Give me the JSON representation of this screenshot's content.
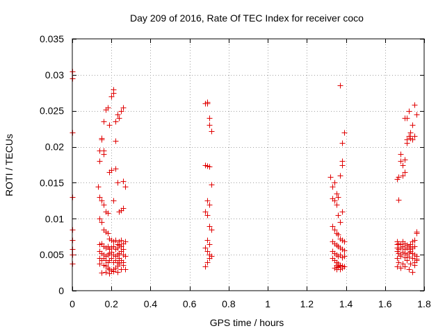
{
  "chart_data": {
    "type": "scatter",
    "title": "Day 209 of 2016, Rate Of TEC Index for receiver coco",
    "xlabel": "GPS time / hours",
    "ylabel": "ROTI / TECUs",
    "xlim": [
      0,
      1.8
    ],
    "ylim": [
      0,
      0.035
    ],
    "grid": true,
    "marker": "+",
    "point_color": "#e00000",
    "xticks": [
      "0",
      "0.2",
      "0.4",
      "0.6",
      "0.8",
      "1",
      "1.2",
      "1.4",
      "1.6",
      "1.8"
    ],
    "yticks": [
      "0",
      "0.005",
      "0.01",
      "0.015",
      "0.02",
      "0.025",
      "0.03",
      "0.035"
    ],
    "series": [
      {
        "name": "ROTI",
        "x": [
          0.0,
          0.0,
          0.0,
          0.0,
          0.0,
          0.0,
          0.0,
          0.0,
          0.0,
          0.13,
          0.14,
          0.14,
          0.15,
          0.15,
          0.16,
          0.16,
          0.16,
          0.17,
          0.18,
          0.19,
          0.19,
          0.2,
          0.21,
          0.21,
          0.22,
          0.22,
          0.23,
          0.23,
          0.24,
          0.25,
          0.26,
          0.26,
          0.27,
          0.14,
          0.15,
          0.16,
          0.17,
          0.18,
          0.2,
          0.21,
          0.22,
          0.24,
          0.25,
          0.26,
          0.14,
          0.15,
          0.16,
          0.17,
          0.18,
          0.19,
          0.2,
          0.21,
          0.22,
          0.23,
          0.24,
          0.25,
          0.26,
          0.27,
          0.14,
          0.15,
          0.16,
          0.17,
          0.18,
          0.19,
          0.2,
          0.21,
          0.22,
          0.23,
          0.24,
          0.25,
          0.26,
          0.14,
          0.15,
          0.16,
          0.17,
          0.18,
          0.19,
          0.2,
          0.21,
          0.22,
          0.23,
          0.24,
          0.25,
          0.26,
          0.27,
          0.14,
          0.15,
          0.16,
          0.17,
          0.18,
          0.19,
          0.2,
          0.21,
          0.22,
          0.23,
          0.24,
          0.25,
          0.26,
          0.14,
          0.16,
          0.17,
          0.18,
          0.19,
          0.2,
          0.21,
          0.22,
          0.23,
          0.24,
          0.26,
          0.27,
          0.15,
          0.17,
          0.19,
          0.21,
          0.23,
          0.25,
          0.68,
          0.69,
          0.69,
          0.7,
          0.7,
          0.71,
          0.68,
          0.69,
          0.7,
          0.71,
          0.69,
          0.7,
          0.68,
          0.69,
          0.7,
          0.71,
          0.69,
          0.7,
          0.68,
          0.69,
          0.7,
          0.71,
          0.7,
          0.69,
          0.68,
          1.32,
          1.33,
          1.34,
          1.35,
          1.36,
          1.37,
          1.38,
          1.39,
          1.38,
          1.37,
          1.38,
          1.39,
          1.33,
          1.34,
          1.35,
          1.36,
          1.37,
          1.38,
          1.33,
          1.34,
          1.35,
          1.36,
          1.37,
          1.38,
          1.39,
          1.33,
          1.34,
          1.35,
          1.36,
          1.37,
          1.38,
          1.39,
          1.33,
          1.34,
          1.35,
          1.36,
          1.37,
          1.38,
          1.39,
          1.33,
          1.34,
          1.35,
          1.36,
          1.37,
          1.38,
          1.39,
          1.34,
          1.35,
          1.36,
          1.37,
          1.38,
          1.39,
          1.35,
          1.36,
          1.37,
          1.66,
          1.67,
          1.68,
          1.69,
          1.7,
          1.71,
          1.72,
          1.73,
          1.74,
          1.75,
          1.76,
          1.7,
          1.71,
          1.72,
          1.73,
          1.74,
          1.75,
          1.69,
          1.7,
          1.71,
          1.68,
          1.67,
          1.66,
          1.66,
          1.67,
          1.68,
          1.69,
          1.7,
          1.71,
          1.72,
          1.73,
          1.74,
          1.75,
          1.76,
          1.66,
          1.67,
          1.68,
          1.69,
          1.7,
          1.71,
          1.72,
          1.73,
          1.74,
          1.75,
          1.76,
          1.66,
          1.67,
          1.68,
          1.69,
          1.7,
          1.71,
          1.72,
          1.73,
          1.74,
          1.75,
          1.76,
          1.66,
          1.68,
          1.7,
          1.72,
          1.74,
          1.76,
          1.67,
          1.69,
          1.71,
          1.73,
          1.75,
          1.66,
          1.68,
          1.7,
          1.72,
          1.74,
          1.75,
          1.76
        ],
        "y": [
          0.0305,
          0.0295,
          0.022,
          0.013,
          0.0085,
          0.007,
          0.0058,
          0.005,
          0.0038,
          0.0145,
          0.018,
          0.0195,
          0.0212,
          0.021,
          0.0195,
          0.019,
          0.0235,
          0.0252,
          0.0255,
          0.023,
          0.0165,
          0.027,
          0.0275,
          0.028,
          0.0235,
          0.0208,
          0.015,
          0.0245,
          0.024,
          0.025,
          0.0255,
          0.0115,
          0.0145,
          0.013,
          0.0125,
          0.012,
          0.011,
          0.0108,
          0.0168,
          0.0125,
          0.017,
          0.011,
          0.0112,
          0.0152,
          0.01,
          0.0095,
          0.0085,
          0.0082,
          0.008,
          0.0072,
          0.007,
          0.0068,
          0.007,
          0.0065,
          0.0068,
          0.007,
          0.0066,
          0.0068,
          0.0065,
          0.0066,
          0.0062,
          0.006,
          0.0062,
          0.0058,
          0.006,
          0.0062,
          0.0058,
          0.006,
          0.0064,
          0.0062,
          0.0058,
          0.0055,
          0.0052,
          0.005,
          0.0048,
          0.005,
          0.0052,
          0.0054,
          0.005,
          0.0048,
          0.005,
          0.0052,
          0.0055,
          0.005,
          0.0048,
          0.0045,
          0.0042,
          0.0045,
          0.0042,
          0.004,
          0.0042,
          0.0045,
          0.004,
          0.0042,
          0.004,
          0.0045,
          0.0042,
          0.004,
          0.0038,
          0.0036,
          0.0035,
          0.0032,
          0.003,
          0.0028,
          0.003,
          0.0032,
          0.0035,
          0.0038,
          0.0036,
          0.003,
          0.0025,
          0.0026,
          0.0024,
          0.0027,
          0.0026,
          0.003,
          0.026,
          0.0262,
          0.026,
          0.024,
          0.023,
          0.0222,
          0.0175,
          0.0174,
          0.0173,
          0.0148,
          0.0125,
          0.012,
          0.011,
          0.0105,
          0.009,
          0.0085,
          0.007,
          0.0065,
          0.006,
          0.0055,
          0.005,
          0.0048,
          0.0045,
          0.004,
          0.0034,
          0.0158,
          0.0145,
          0.015,
          0.0135,
          0.013,
          0.016,
          0.0175,
          0.022,
          0.0205,
          0.0285,
          0.018,
          0.022,
          0.0128,
          0.0125,
          0.012,
          0.0105,
          0.0095,
          0.011,
          0.009,
          0.0085,
          0.008,
          0.0078,
          0.0072,
          0.007,
          0.0068,
          0.0068,
          0.0066,
          0.0064,
          0.0062,
          0.006,
          0.0058,
          0.0056,
          0.0055,
          0.0052,
          0.005,
          0.0048,
          0.005,
          0.0046,
          0.0048,
          0.0045,
          0.0042,
          0.004,
          0.0038,
          0.0036,
          0.0035,
          0.0034,
          0.0032,
          0.003,
          0.0033,
          0.0035,
          0.0032,
          0.0034,
          0.0036,
          0.0034,
          0.003,
          0.0155,
          0.0158,
          0.018,
          0.0175,
          0.024,
          0.024,
          0.025,
          0.022,
          0.023,
          0.0258,
          0.0245,
          0.0182,
          0.021,
          0.0215,
          0.0212,
          0.021,
          0.0215,
          0.016,
          0.0165,
          0.0205,
          0.019,
          0.0126,
          0.0065,
          0.0068,
          0.0066,
          0.0065,
          0.0068,
          0.0066,
          0.0064,
          0.0062,
          0.0065,
          0.0068,
          0.007,
          0.0082,
          0.006,
          0.0058,
          0.006,
          0.0062,
          0.0058,
          0.006,
          0.0062,
          0.0058,
          0.006,
          0.0062,
          0.008,
          0.0055,
          0.0052,
          0.005,
          0.0054,
          0.0052,
          0.005,
          0.0053,
          0.0055,
          0.0052,
          0.005,
          0.0048,
          0.0045,
          0.0048,
          0.0046,
          0.0047,
          0.0045,
          0.0044,
          0.004,
          0.0038,
          0.0042,
          0.0038,
          0.0036,
          0.0034,
          0.0032,
          0.0034,
          0.003,
          0.0026,
          0.004,
          0.0042
        ]
      }
    ]
  }
}
